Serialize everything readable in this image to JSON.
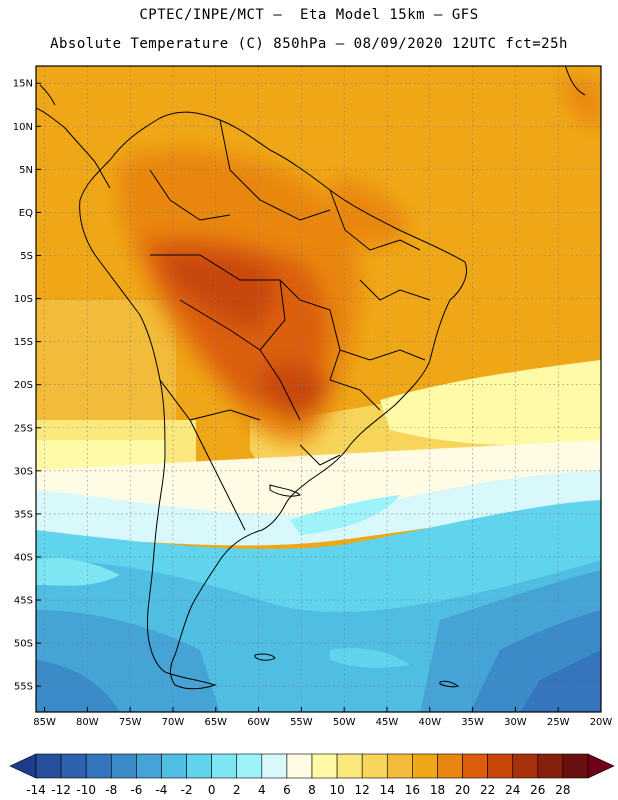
{
  "title": {
    "line1": "CPTEC/INPE/MCT –  Eta Model 15km – GFS",
    "line2": "Absolute Temperature (C) 850hPa – 08/09/2020 12UTC fct=25h"
  },
  "map": {
    "lat_labels": [
      "15N",
      "10N",
      "5N",
      "EQ",
      "5S",
      "10S",
      "15S",
      "20S",
      "25S",
      "30S",
      "35S",
      "40S",
      "45S",
      "50S",
      "55S"
    ],
    "lon_labels": [
      "85W",
      "80W",
      "75W",
      "70W",
      "65W",
      "60W",
      "55W",
      "50W",
      "45W",
      "40W",
      "35W",
      "30W",
      "25W",
      "20W"
    ],
    "lat_values": [
      15,
      10,
      5,
      0,
      -5,
      -10,
      -15,
      -20,
      -25,
      -30,
      -35,
      -40,
      -45,
      -50,
      -55
    ],
    "lon_values": [
      -85,
      -80,
      -75,
      -70,
      -65,
      -60,
      -55,
      -50,
      -45,
      -40,
      -35,
      -30,
      -25,
      -20
    ],
    "lat_range": [
      -58,
      17
    ],
    "lon_range": [
      -86,
      -20
    ]
  },
  "colorbar": {
    "labels": [
      "-14",
      "-12",
      "-10",
      "-8",
      "-6",
      "-4",
      "-2",
      "0",
      "2",
      "4",
      "6",
      "8",
      "10",
      "12",
      "14",
      "16",
      "18",
      "20",
      "22",
      "24",
      "26",
      "28"
    ],
    "colors": [
      "#1e3c8c",
      "#284f9e",
      "#2f62ae",
      "#3575bd",
      "#3b8bc9",
      "#45a3d6",
      "#4fbee2",
      "#5fd4ec",
      "#7ee6f2",
      "#9ef3fa",
      "#d8f8fb",
      "#fffbe4",
      "#fffaa6",
      "#fce97e",
      "#f7d45a",
      "#f2bc3a",
      "#efa718",
      "#e98611",
      "#dc5e0d",
      "#c8470b",
      "#a8300a",
      "#84200c",
      "#6a1010",
      "#70001a"
    ]
  }
}
